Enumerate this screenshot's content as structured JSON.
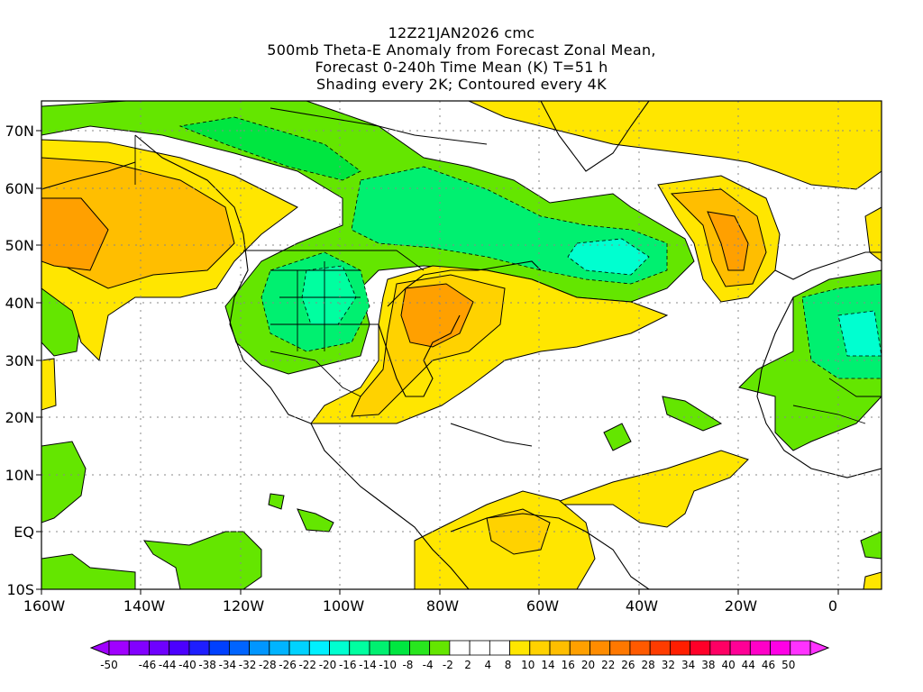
{
  "title": {
    "lines": [
      "12Z21JAN2026 cmc",
      "500mb Theta-E Anomaly from Forecast Zonal Mean,",
      "Forecast 0-240h Time Mean (K) T=51 h",
      "Shading every 2K; Contoured every 4K"
    ]
  },
  "axes": {
    "y_labels": [
      "70N",
      "60N",
      "50N",
      "40N",
      "30N",
      "20N",
      "10N",
      "EQ",
      "10S"
    ],
    "x_labels": [
      "160W",
      "140W",
      "120W",
      "100W",
      "80W",
      "60W",
      "40W",
      "20W",
      "0"
    ]
  },
  "colorbar": {
    "labels": [
      "-50",
      "-46",
      "-44",
      "-40",
      "-38",
      "-34",
      "-32",
      "-28",
      "-26",
      "-22",
      "-20",
      "-16",
      "-14",
      "-10",
      "-8",
      "-4",
      "-2",
      "2",
      "4",
      "8",
      "10",
      "14",
      "16",
      "20",
      "22",
      "26",
      "28",
      "32",
      "34",
      "38",
      "40",
      "44",
      "46",
      "50"
    ],
    "colors": [
      "#a000ff",
      "#8200ff",
      "#6e00ff",
      "#4b00ff",
      "#1e1eff",
      "#0040ff",
      "#0064ff",
      "#0096ff",
      "#00b4ff",
      "#00d2ff",
      "#00f0ff",
      "#00ffd0",
      "#00ffa0",
      "#00f070",
      "#00e640",
      "#28e61e",
      "#64e600",
      "#ffffff",
      "#ffffff",
      "#ffffff",
      "#ffe600",
      "#ffd200",
      "#ffbe00",
      "#ffa000",
      "#ff8c00",
      "#ff7800",
      "#ff5a00",
      "#ff3c00",
      "#ff1e00",
      "#ff0028",
      "#ff0064",
      "#ff0096",
      "#ff00c8",
      "#ff00e6",
      "#ff32ff"
    ]
  }
}
